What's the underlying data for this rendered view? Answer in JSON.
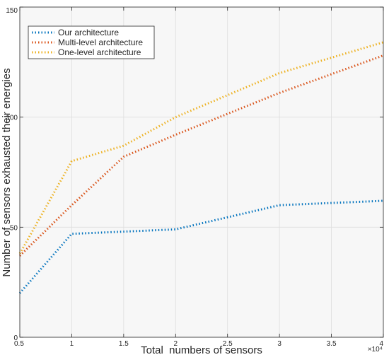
{
  "chart_data": {
    "type": "line",
    "xlabel": "Total  numbers of sensors",
    "ylabel": "Number of sensors exhausted their energies",
    "x_multiplier_label": "×10⁴",
    "xlim": [
      0.5,
      4
    ],
    "ylim": [
      0,
      150
    ],
    "x_ticks": [
      0.5,
      1,
      1.5,
      2,
      2.5,
      3,
      3.5,
      4
    ],
    "x_tick_labels": [
      "0.5",
      "1",
      "1.5",
      "2",
      "2.5",
      "3",
      "3.5",
      "4"
    ],
    "y_ticks": [
      0,
      50,
      100,
      150
    ],
    "y_tick_labels": [
      "0",
      "50",
      "100",
      "150"
    ],
    "grid": true,
    "legend_position": "top-left",
    "x": [
      0.5,
      1,
      1.5,
      2,
      3,
      4
    ],
    "series": [
      {
        "name": "Our architecture",
        "color": "#0072BD",
        "values": [
          20,
          47,
          48,
          49,
          60,
          62
        ]
      },
      {
        "name": "Multi-level architecture",
        "color": "#D95319",
        "values": [
          37,
          60,
          82,
          92,
          111,
          128
        ]
      },
      {
        "name": "One-level architecture",
        "color": "#EDB120",
        "values": [
          38,
          80,
          87,
          100,
          120,
          134
        ]
      }
    ]
  }
}
